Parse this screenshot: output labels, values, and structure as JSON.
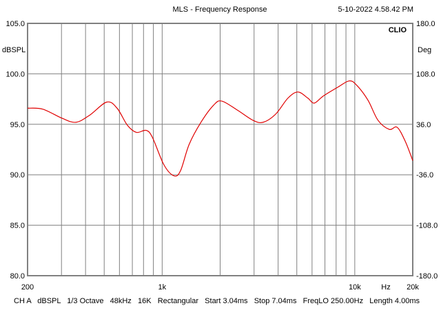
{
  "header": {
    "title": "MLS - Frequency Response",
    "timestamp": "5-10-2022 4.58.42 PM",
    "brand": "CLIO"
  },
  "status_line": "CH A   dBSPL   1/3 Octave   48kHz   16K   Rectangular   Start 3.04ms   Stop 7.04ms   FreqLO 250.00Hz   Length 4.00ms",
  "chart_data": {
    "type": "line",
    "title": "MLS - Frequency Response",
    "xlabel": "Hz",
    "ylabel": "dBSPL",
    "y2label": "Deg",
    "xscale": "log",
    "xlim": [
      200,
      20000
    ],
    "ylim": [
      80,
      105
    ],
    "y2lim": [
      -180,
      180
    ],
    "x_ticks": [
      {
        "v": 200,
        "label": "200"
      },
      {
        "v": 1000,
        "label": "1k"
      },
      {
        "v": 10000,
        "label": "10k"
      },
      {
        "v": 20000,
        "label": "20k"
      }
    ],
    "y_ticks": [
      {
        "v": 105,
        "label": "105.0"
      },
      {
        "v": 100,
        "label": "100.0"
      },
      {
        "v": 95,
        "label": "95.0"
      },
      {
        "v": 90,
        "label": "90.0"
      },
      {
        "v": 85,
        "label": "85.0"
      },
      {
        "v": 80,
        "label": "80.0"
      }
    ],
    "y2_ticks": [
      "180.0",
      "108.0",
      "36.0",
      "-36.0",
      "-108.0",
      "-180.0"
    ],
    "grid": true,
    "series": [
      {
        "name": "CH A",
        "color": "#e00000",
        "x": [
          200,
          240,
          302,
          356,
          420,
          515,
          583,
          660,
          735,
          825,
          890,
          1020,
          1150,
          1245,
          1380,
          1590,
          1850,
          2040,
          2460,
          2960,
          3340,
          3880,
          4500,
          5070,
          5700,
          6160,
          6860,
          8200,
          9350,
          10200,
          11700,
          13200,
          15100,
          16600,
          18300,
          20000
        ],
        "y": [
          96.6,
          96.5,
          95.6,
          95.2,
          95.9,
          97.2,
          96.6,
          94.9,
          94.2,
          94.4,
          93.7,
          91.0,
          89.9,
          90.4,
          93.0,
          95.2,
          96.9,
          97.3,
          96.4,
          95.4,
          95.2,
          96.0,
          97.6,
          98.2,
          97.6,
          97.1,
          97.8,
          98.7,
          99.3,
          98.9,
          97.4,
          95.4,
          94.5,
          94.7,
          93.3,
          91.4
        ]
      }
    ]
  }
}
